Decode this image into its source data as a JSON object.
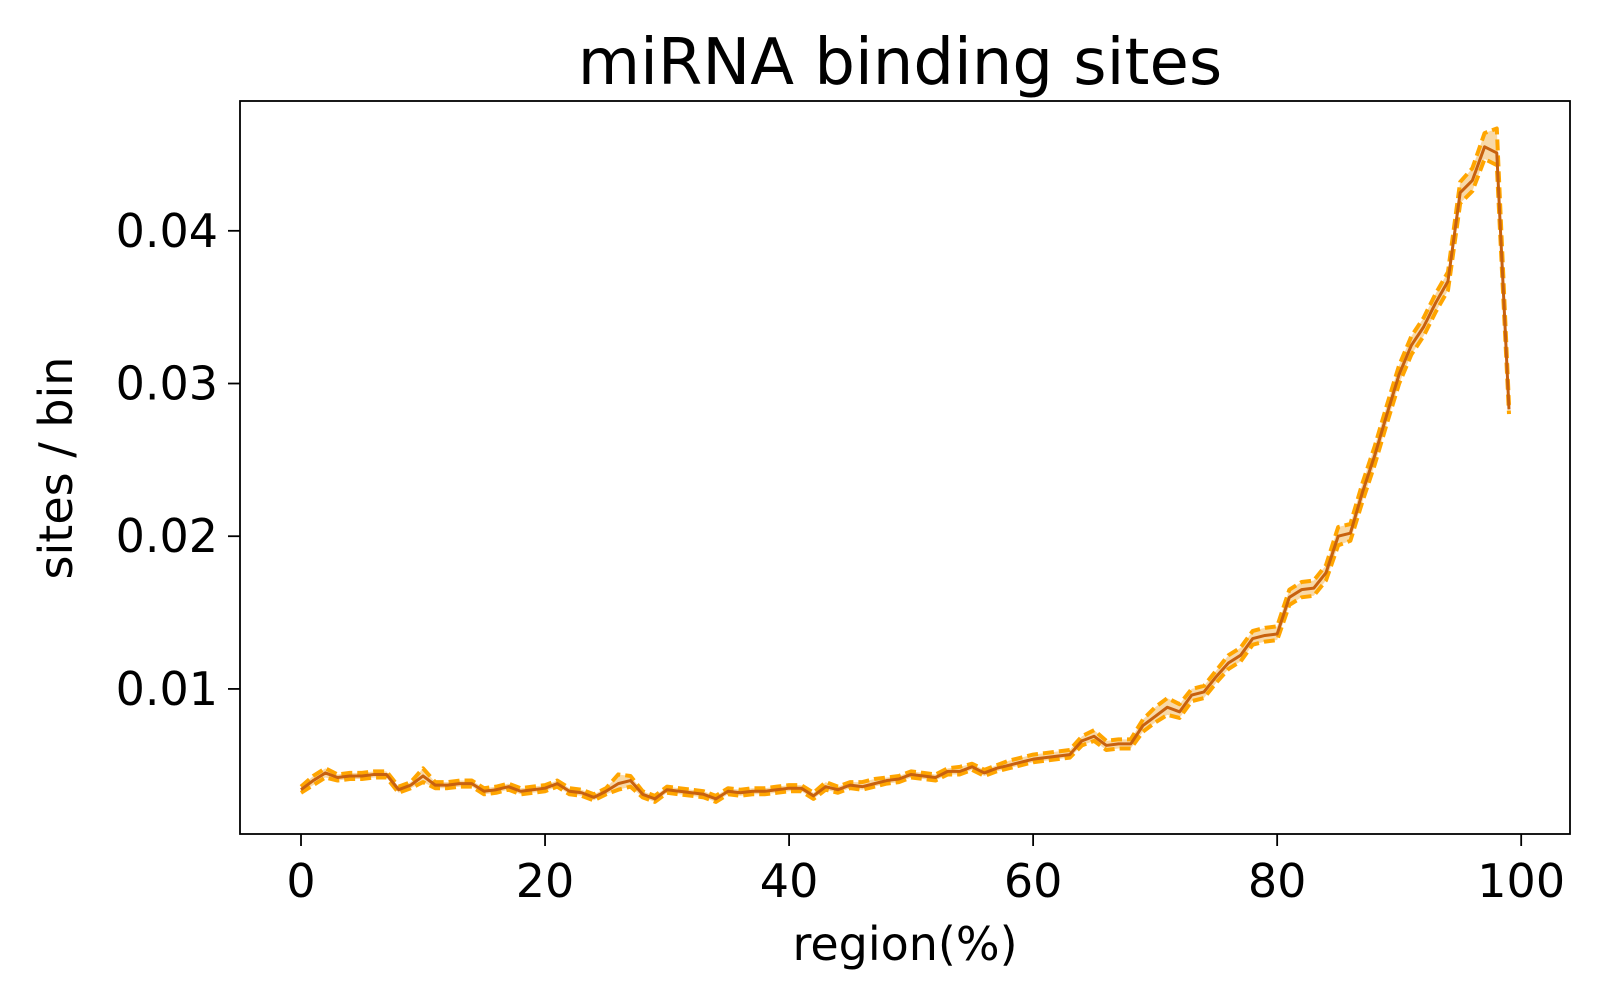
{
  "chart_data": {
    "type": "line",
    "title": "miRNA binding sites",
    "xlabel": "region(%)",
    "ylabel": "sites / bin",
    "xlim": [
      -5,
      104
    ],
    "ylim": [
      0.0005,
      0.0485
    ],
    "xticks": [
      0,
      20,
      40,
      60,
      80,
      100
    ],
    "xtick_labels": [
      "0",
      "20",
      "40",
      "60",
      "80",
      "100"
    ],
    "yticks": [
      0.01,
      0.02,
      0.03,
      0.04
    ],
    "ytick_labels": [
      "0.01",
      "0.02",
      "0.03",
      "0.04"
    ],
    "grid": false,
    "legend": "none",
    "colors": {
      "line": "#c8610e",
      "band_fill": "#f8d9a8",
      "band_edge": "#ffa500"
    },
    "series": [
      {
        "x": [
          0,
          1,
          2,
          3,
          4,
          5,
          6,
          7,
          8,
          9,
          10,
          11,
          12,
          13,
          14,
          15,
          16,
          17,
          18,
          19,
          20,
          21,
          22,
          23,
          24,
          25,
          26,
          27,
          28,
          29,
          30,
          31,
          32,
          33,
          34,
          35,
          36,
          37,
          38,
          39,
          40,
          41,
          42,
          43,
          44,
          45,
          46,
          47,
          48,
          49,
          50,
          51,
          52,
          53,
          54,
          55,
          56,
          57,
          58,
          59,
          60,
          61,
          62,
          63,
          64,
          65,
          66,
          67,
          68,
          69,
          70,
          71,
          72,
          73,
          74,
          75,
          76,
          77,
          78,
          79,
          80,
          81,
          82,
          83,
          84,
          85,
          86,
          87,
          88,
          89,
          90,
          91,
          92,
          93,
          94,
          95,
          96,
          97,
          98,
          99
        ],
        "y": [
          0.0034,
          0.004,
          0.0045,
          0.0042,
          0.0043,
          0.0043,
          0.0044,
          0.0044,
          0.0034,
          0.0037,
          0.0043,
          0.0037,
          0.0037,
          0.0038,
          0.0038,
          0.0033,
          0.0034,
          0.0036,
          0.0033,
          0.0034,
          0.0035,
          0.0038,
          0.0033,
          0.0032,
          0.0029,
          0.0033,
          0.0038,
          0.004,
          0.0031,
          0.0028,
          0.0034,
          0.0033,
          0.0032,
          0.0031,
          0.0028,
          0.0033,
          0.0032,
          0.0033,
          0.0033,
          0.0034,
          0.0035,
          0.0035,
          0.003,
          0.0036,
          0.0034,
          0.0037,
          0.0036,
          0.0038,
          0.004,
          0.0041,
          0.0044,
          0.0043,
          0.0042,
          0.0046,
          0.0046,
          0.0049,
          0.0045,
          0.0048,
          0.005,
          0.0052,
          0.0054,
          0.0055,
          0.0056,
          0.0057,
          0.0066,
          0.0069,
          0.0063,
          0.0064,
          0.0064,
          0.0076,
          0.0082,
          0.0088,
          0.0085,
          0.0096,
          0.0098,
          0.0108,
          0.0117,
          0.0122,
          0.0133,
          0.0135,
          0.0136,
          0.016,
          0.0165,
          0.0166,
          0.0176,
          0.02,
          0.0202,
          0.0229,
          0.0253,
          0.028,
          0.0306,
          0.0325,
          0.0337,
          0.0353,
          0.0367,
          0.0425,
          0.0433,
          0.0455,
          0.0451,
          0.0283
        ],
        "lower": [
          0.0032,
          0.0037,
          0.0042,
          0.004,
          0.0041,
          0.0041,
          0.0042,
          0.0042,
          0.0032,
          0.0035,
          0.0039,
          0.0035,
          0.0035,
          0.0036,
          0.0036,
          0.0031,
          0.0032,
          0.0034,
          0.0031,
          0.0032,
          0.0033,
          0.0036,
          0.0031,
          0.003,
          0.0027,
          0.0031,
          0.0034,
          0.0036,
          0.0029,
          0.0026,
          0.0032,
          0.0031,
          0.003,
          0.0029,
          0.0026,
          0.0031,
          0.003,
          0.0031,
          0.0031,
          0.0032,
          0.0033,
          0.0033,
          0.0028,
          0.0034,
          0.0032,
          0.0035,
          0.0034,
          0.0036,
          0.0038,
          0.0039,
          0.0042,
          0.0041,
          0.004,
          0.0044,
          0.0044,
          0.0047,
          0.0043,
          0.0046,
          0.0048,
          0.005,
          0.0052,
          0.0053,
          0.0054,
          0.0055,
          0.0063,
          0.0066,
          0.006,
          0.0061,
          0.0061,
          0.0072,
          0.0078,
          0.0083,
          0.0081,
          0.0092,
          0.0094,
          0.0104,
          0.0113,
          0.0118,
          0.0129,
          0.0131,
          0.0132,
          0.0155,
          0.016,
          0.0161,
          0.0171,
          0.0194,
          0.0197,
          0.0223,
          0.0247,
          0.0274,
          0.03,
          0.0319,
          0.0331,
          0.0347,
          0.0361,
          0.0418,
          0.0426,
          0.0447,
          0.0443,
          0.028
        ],
        "upper": [
          0.0036,
          0.0043,
          0.0048,
          0.0044,
          0.0045,
          0.0045,
          0.0046,
          0.0046,
          0.0036,
          0.0039,
          0.0048,
          0.0039,
          0.0039,
          0.004,
          0.004,
          0.0035,
          0.0036,
          0.0038,
          0.0035,
          0.0036,
          0.0037,
          0.004,
          0.0035,
          0.0034,
          0.0031,
          0.0035,
          0.0044,
          0.0043,
          0.0033,
          0.003,
          0.0036,
          0.0035,
          0.0034,
          0.0033,
          0.003,
          0.0035,
          0.0034,
          0.0035,
          0.0035,
          0.0036,
          0.0037,
          0.0037,
          0.0032,
          0.0039,
          0.0036,
          0.0039,
          0.0039,
          0.0041,
          0.0042,
          0.0043,
          0.0046,
          0.0045,
          0.0044,
          0.0048,
          0.0049,
          0.0051,
          0.0047,
          0.005,
          0.0053,
          0.0055,
          0.0057,
          0.0058,
          0.0059,
          0.006,
          0.0069,
          0.0073,
          0.0066,
          0.0067,
          0.0067,
          0.008,
          0.0088,
          0.0094,
          0.009,
          0.01,
          0.0102,
          0.0112,
          0.0122,
          0.0127,
          0.0138,
          0.014,
          0.0141,
          0.0165,
          0.017,
          0.0171,
          0.0181,
          0.0206,
          0.0208,
          0.0235,
          0.0259,
          0.0286,
          0.0312,
          0.0331,
          0.0343,
          0.0359,
          0.0373,
          0.0432,
          0.0441,
          0.0464,
          0.0467,
          0.0286
        ]
      }
    ]
  }
}
